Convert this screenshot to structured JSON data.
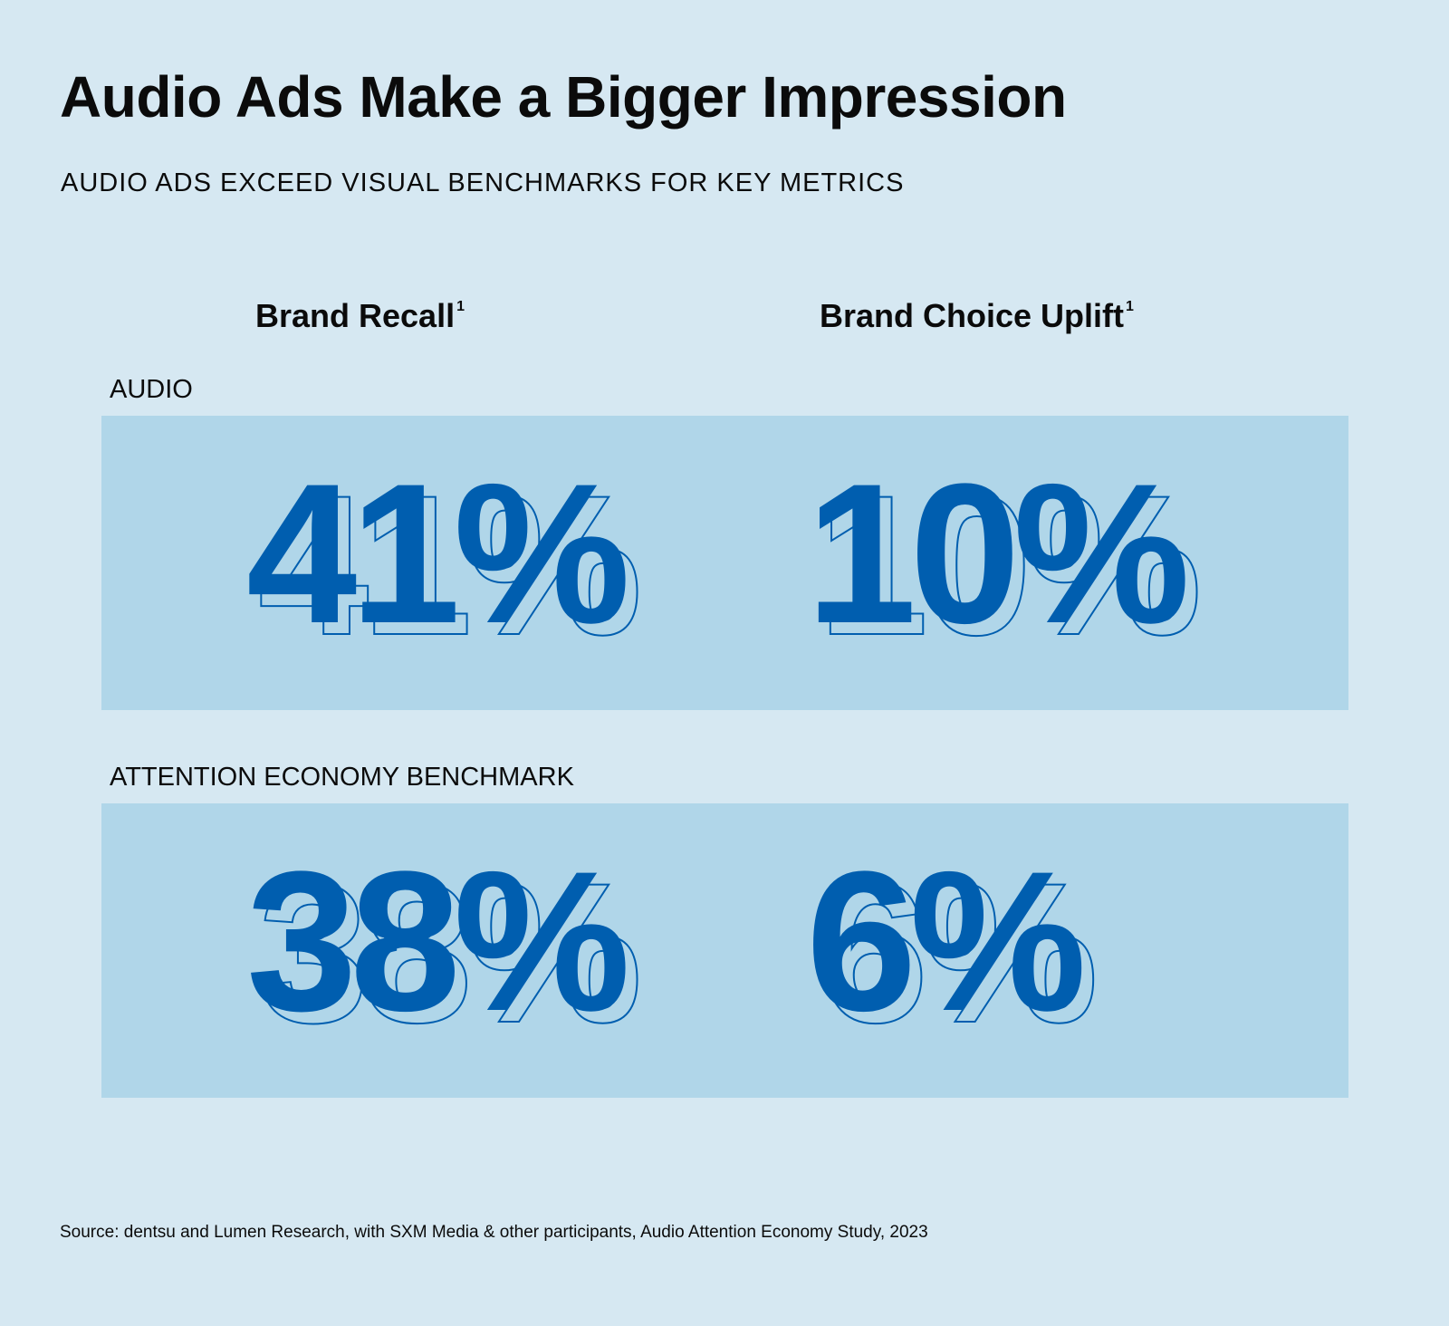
{
  "title": "Audio Ads Make a Bigger Impression",
  "subtitle": "AUDIO ADS EXCEED VISUAL BENCHMARKS FOR KEY METRICS",
  "columns": [
    {
      "label": "Brand Recall",
      "footnote": "1"
    },
    {
      "label": "Brand Choice Uplift",
      "footnote": "1"
    }
  ],
  "rows": [
    {
      "label": "AUDIO"
    },
    {
      "label": "ATTENTION ECONOMY BENCHMARK"
    }
  ],
  "values_text": {
    "audio_recall": "41%",
    "audio_choice": "10%",
    "benchmark_recall": "38%",
    "benchmark_choice": "6%"
  },
  "source": "Source: dentsu and Lumen Research, with SXM Media & other participants, Audio Attention Economy Study, 2023",
  "colors": {
    "background": "#d6e8f2",
    "panel": "#b0d6e9",
    "number_fill": "#005eaf",
    "number_outline": "#005eaf",
    "text": "#0b0b0b"
  },
  "chart_data": {
    "type": "table",
    "title": "Audio Ads Make a Bigger Impression",
    "subtitle": "AUDIO ADS EXCEED VISUAL BENCHMARKS FOR KEY METRICS",
    "categories": [
      "Brand Recall",
      "Brand Choice Uplift"
    ],
    "series": [
      {
        "name": "AUDIO",
        "values": [
          41,
          10
        ]
      },
      {
        "name": "ATTENTION ECONOMY BENCHMARK",
        "values": [
          38,
          6
        ]
      }
    ],
    "unit": "%"
  }
}
